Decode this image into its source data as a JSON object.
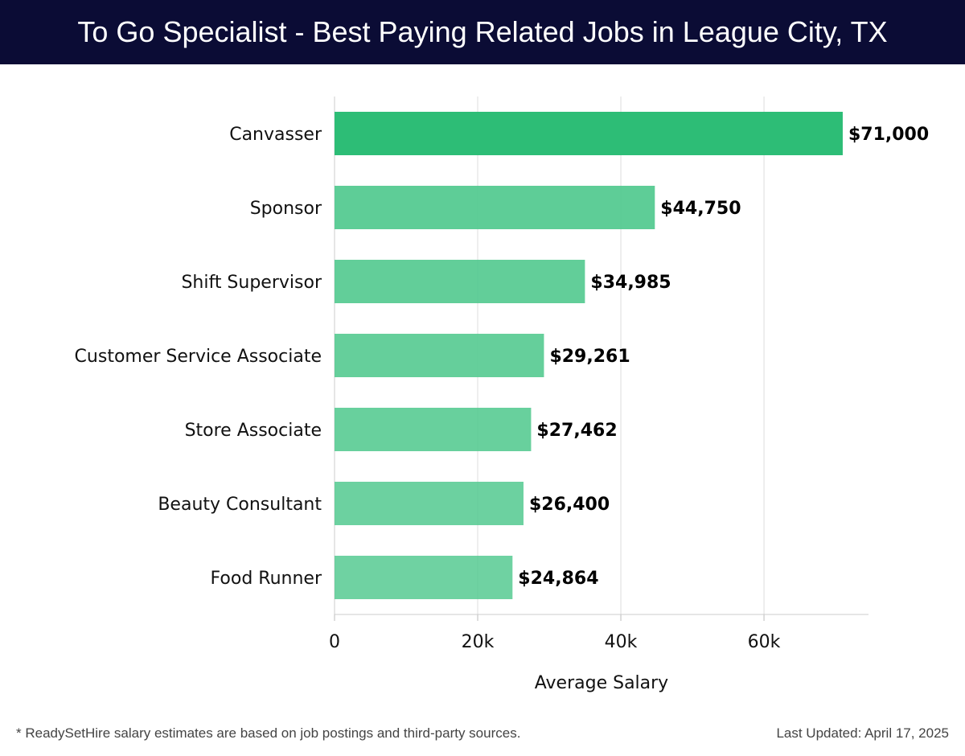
{
  "header": {
    "title": "To Go Specialist - Best Paying Related Jobs in League City, TX"
  },
  "chart_data": {
    "type": "bar",
    "orientation": "horizontal",
    "title": "To Go Specialist - Best Paying Related Jobs in League City, TX",
    "categories": [
      "Canvasser",
      "Sponsor",
      "Shift Supervisor",
      "Customer Service Associate",
      "Store Associate",
      "Beauty Consultant",
      "Food Runner"
    ],
    "values": [
      71000,
      44750,
      34985,
      29261,
      27462,
      26400,
      24864
    ],
    "data_labels": [
      "$71,000",
      "$44,750",
      "$34,985",
      "$29,261",
      "$27,462",
      "$26,400",
      "$24,864"
    ],
    "xlabel": "Average Salary",
    "ylabel": "",
    "xlim": [
      0,
      74600
    ],
    "xticks": [
      0,
      20000,
      40000,
      60000
    ],
    "xtick_labels": [
      "0",
      "20k",
      "40k",
      "60k"
    ],
    "grid": true,
    "colors": {
      "highlight": "#2dbd76",
      "bar": "#52c98f"
    }
  },
  "footer": {
    "note": "* ReadySetHire salary estimates are based on job postings and third-party sources.",
    "updated": "Last Updated: April 17, 2025"
  }
}
